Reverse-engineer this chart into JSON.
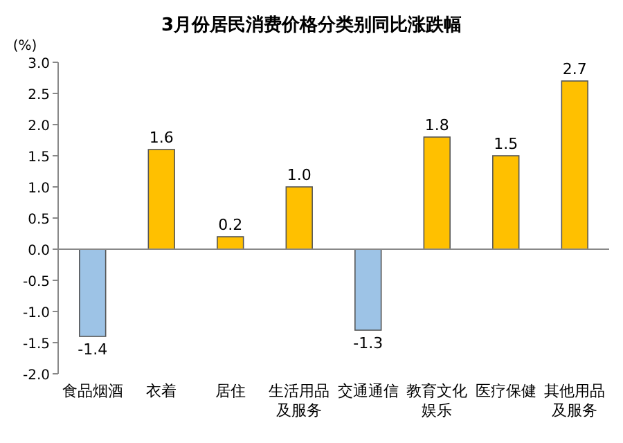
{
  "chart_data": {
    "type": "bar",
    "title": "3月份居民消费价格分类别同比涨跌幅",
    "ylabel": "(%)",
    "categories": [
      "食品烟酒",
      "衣着",
      "居住",
      "生活用品及服务",
      "交通通信",
      "教育文化娱乐",
      "医疗保健",
      "其他用品及服务"
    ],
    "values": [
      -1.4,
      1.6,
      0.2,
      1.0,
      -1.3,
      1.8,
      1.5,
      2.7
    ],
    "colors": [
      "#9dc3e6",
      "#ffc000",
      "#ffc000",
      "#ffc000",
      "#9dc3e6",
      "#ffc000",
      "#ffc000",
      "#ffc000"
    ],
    "value_labels": [
      "-1.4",
      "1.6",
      "0.2",
      "1.0",
      "-1.3",
      "1.8",
      "1.5",
      "2.7"
    ],
    "ylim": [
      -2,
      3
    ],
    "yticks": [
      {
        "value": -2,
        "label": "-2.0"
      },
      {
        "value": -1.5,
        "label": "-1.5"
      },
      {
        "value": -1,
        "label": "-1.0"
      },
      {
        "value": -0.5,
        "label": "-0.5"
      },
      {
        "value": 0,
        "label": "0.0"
      },
      {
        "value": 0.5,
        "label": "0.5"
      },
      {
        "value": 1,
        "label": "1.0"
      },
      {
        "value": 1.5,
        "label": "1.5"
      },
      {
        "value": 2,
        "label": "2.0"
      },
      {
        "value": 2.5,
        "label": "2.5"
      },
      {
        "value": 3,
        "label": "3.0"
      }
    ]
  }
}
